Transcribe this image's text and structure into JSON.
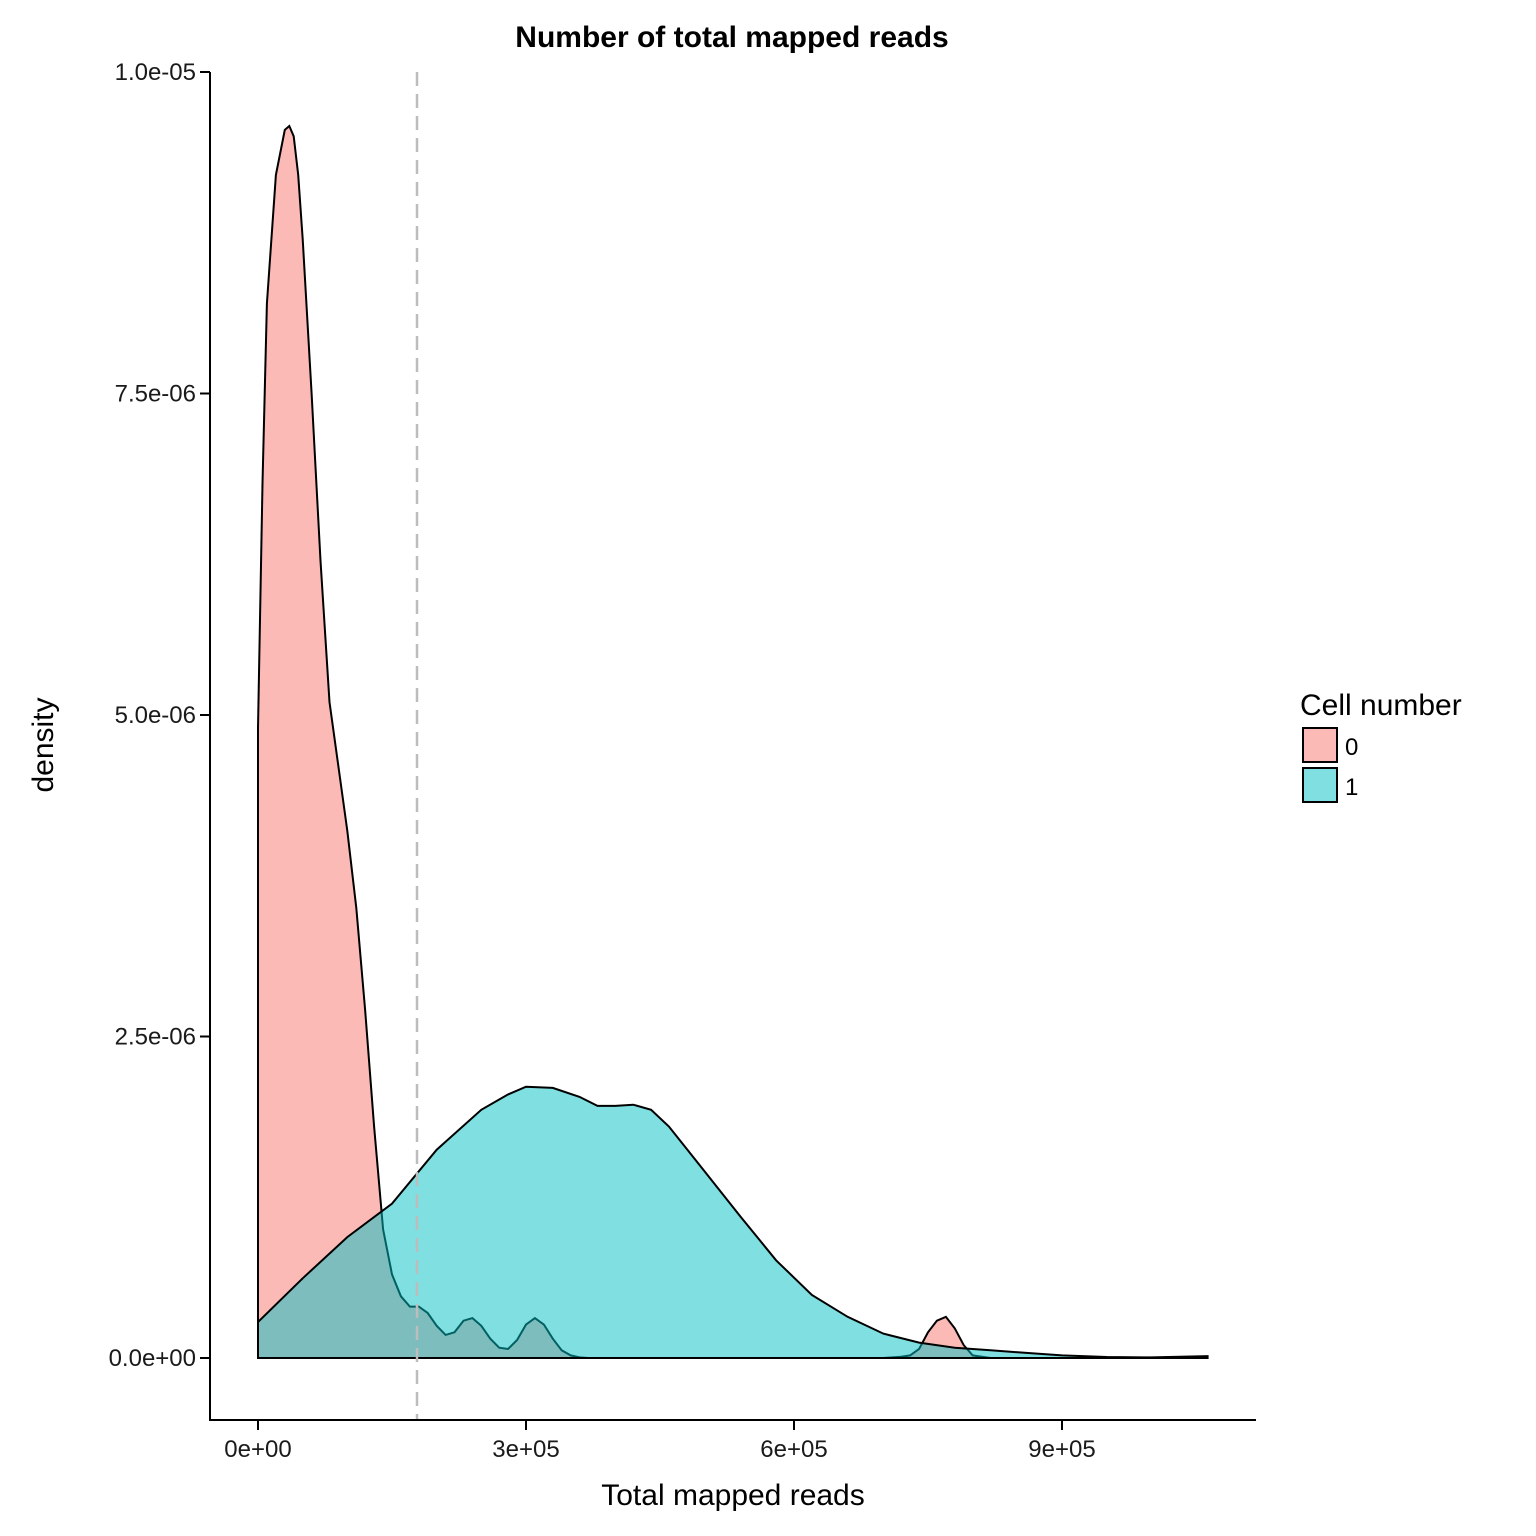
{
  "chart_data": {
    "type": "area",
    "title": "Number of total mapped reads",
    "xlabel": "Total mapped reads",
    "ylabel": "density",
    "xlim": [
      -45000,
      1110000
    ],
    "ylim": [
      -4.8e-07,
      1e-05
    ],
    "x_ticks": [
      {
        "value": 0,
        "label": "0e+00"
      },
      {
        "value": 300000,
        "label": "3e+05"
      },
      {
        "value": 600000,
        "label": "6e+05"
      },
      {
        "value": 900000,
        "label": "9e+05"
      }
    ],
    "y_ticks": [
      {
        "value": 0,
        "label": "0.0e+00"
      },
      {
        "value": 2.5e-06,
        "label": "2.5e-06"
      },
      {
        "value": 5e-06,
        "label": "5.0e-06"
      },
      {
        "value": 7.5e-06,
        "label": "7.5e-06"
      },
      {
        "value": 1e-05,
        "label": "1.0e-05"
      }
    ],
    "grid": false,
    "legend": {
      "title": "Cell number",
      "position": "right"
    },
    "threshold_x": 178000,
    "series": [
      {
        "name": "0",
        "color": "#F8766D",
        "x": [
          0,
          5000,
          10000,
          20000,
          30000,
          35000,
          40000,
          45000,
          50000,
          60000,
          70000,
          80000,
          90000,
          100000,
          110000,
          120000,
          130000,
          140000,
          150000,
          160000,
          170000,
          180000,
          190000,
          200000,
          210000,
          220000,
          230000,
          240000,
          250000,
          260000,
          270000,
          280000,
          290000,
          300000,
          310000,
          320000,
          330000,
          340000,
          350000,
          360000,
          370000,
          400000,
          500000,
          600000,
          700000,
          720000,
          730000,
          740000,
          750000,
          760000,
          770000,
          780000,
          790000,
          800000,
          820000,
          900000,
          1000000,
          1063000
        ],
        "y": [
          4.9e-06,
          6.8e-06,
          8.2e-06,
          9.2e-06,
          9.55e-06,
          9.58e-06,
          9.5e-06,
          9.2e-06,
          8.7e-06,
          7.5e-06,
          6.2e-06,
          5.1e-06,
          4.6e-06,
          4.1e-06,
          3.5e-06,
          2.7e-06,
          1.8e-06,
          1e-06,
          6.5e-07,
          4.8e-07,
          4e-07,
          4e-07,
          3.5e-07,
          2.5e-07,
          1.8e-07,
          2e-07,
          2.9e-07,
          3.1e-07,
          2.5e-07,
          1.5e-07,
          8e-08,
          7e-08,
          1.4e-07,
          2.6e-07,
          3.1e-07,
          2.6e-07,
          1.5e-07,
          6e-08,
          2e-08,
          5e-09,
          0,
          0,
          0,
          0,
          0,
          1e-08,
          2e-08,
          7e-08,
          2e-07,
          2.9e-07,
          3.2e-07,
          2.3e-07,
          1e-07,
          2e-08,
          0,
          0,
          0,
          0
        ]
      },
      {
        "name": "1",
        "color": "#00BFC4",
        "x": [
          0,
          50000,
          100000,
          150000,
          200000,
          250000,
          280000,
          300000,
          330000,
          360000,
          380000,
          400000,
          420000,
          440000,
          460000,
          500000,
          540000,
          580000,
          620000,
          660000,
          700000,
          740000,
          780000,
          820000,
          860000,
          900000,
          950000,
          1000000,
          1063000
        ],
        "y": [
          2.8e-07,
          6.2e-07,
          9.4e-07,
          1.2e-06,
          1.62e-06,
          1.93e-06,
          2.05e-06,
          2.11e-06,
          2.1e-06,
          2.03e-06,
          1.96e-06,
          1.96e-06,
          1.97e-06,
          1.93e-06,
          1.8e-06,
          1.45e-06,
          1.1e-06,
          7.6e-07,
          4.9e-07,
          3.2e-07,
          1.9e-07,
          1.2e-07,
          8e-08,
          6e-08,
          4e-08,
          2e-08,
          8e-09,
          5e-09,
          1.5e-08
        ]
      }
    ]
  }
}
